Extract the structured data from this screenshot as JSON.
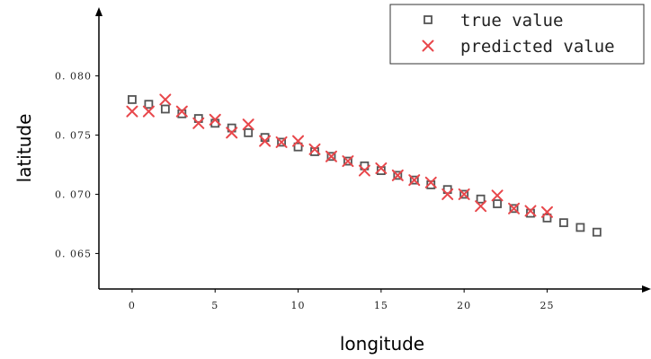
{
  "chart_data": {
    "type": "scatter",
    "title": "",
    "xlabel": "longitude",
    "ylabel": "latitude",
    "xlim": [
      -2,
      30.5
    ],
    "ylim": [
      0.062,
      0.0855
    ],
    "x_ticks": [
      0,
      5,
      10,
      15,
      20,
      25
    ],
    "y_ticks": [
      0.065,
      0.07,
      0.075,
      0.08
    ],
    "y_tick_labels": [
      "0. 065",
      "0. 070",
      "0. 075",
      "0. 080"
    ],
    "grid": false,
    "legend_position": "top-right",
    "series": [
      {
        "name": "true value",
        "marker": "square",
        "color": "#555555",
        "x": [
          0,
          1,
          2,
          3,
          4,
          5,
          6,
          7,
          8,
          9,
          10,
          11,
          12,
          13,
          14,
          15,
          16,
          17,
          18,
          19,
          20,
          21,
          22,
          23,
          24,
          25,
          26,
          27,
          28
        ],
        "y": [
          0.078,
          0.0776,
          0.0772,
          0.0768,
          0.0764,
          0.076,
          0.0756,
          0.0752,
          0.0748,
          0.0744,
          0.074,
          0.0736,
          0.0732,
          0.0728,
          0.0724,
          0.072,
          0.0716,
          0.0712,
          0.0708,
          0.0704,
          0.07,
          0.0696,
          0.0692,
          0.0688,
          0.0684,
          0.068,
          0.0676,
          0.0672,
          0.0668
        ]
      },
      {
        "name": "predicted value",
        "marker": "x",
        "color": "#e8474b",
        "x": [
          0,
          1,
          2,
          3,
          4,
          5,
          6,
          7,
          8,
          9,
          10,
          11,
          12,
          13,
          14,
          15,
          16,
          17,
          18,
          19,
          20,
          21,
          22,
          23,
          24,
          25
        ],
        "y": [
          0.077,
          0.077,
          0.078,
          0.077,
          0.076,
          0.0763,
          0.0752,
          0.0759,
          0.0745,
          0.0744,
          0.0745,
          0.0738,
          0.0732,
          0.0728,
          0.072,
          0.0722,
          0.0716,
          0.0712,
          0.071,
          0.07,
          0.07,
          0.069,
          0.0699,
          0.0688,
          0.0686,
          0.0685
        ]
      }
    ]
  }
}
